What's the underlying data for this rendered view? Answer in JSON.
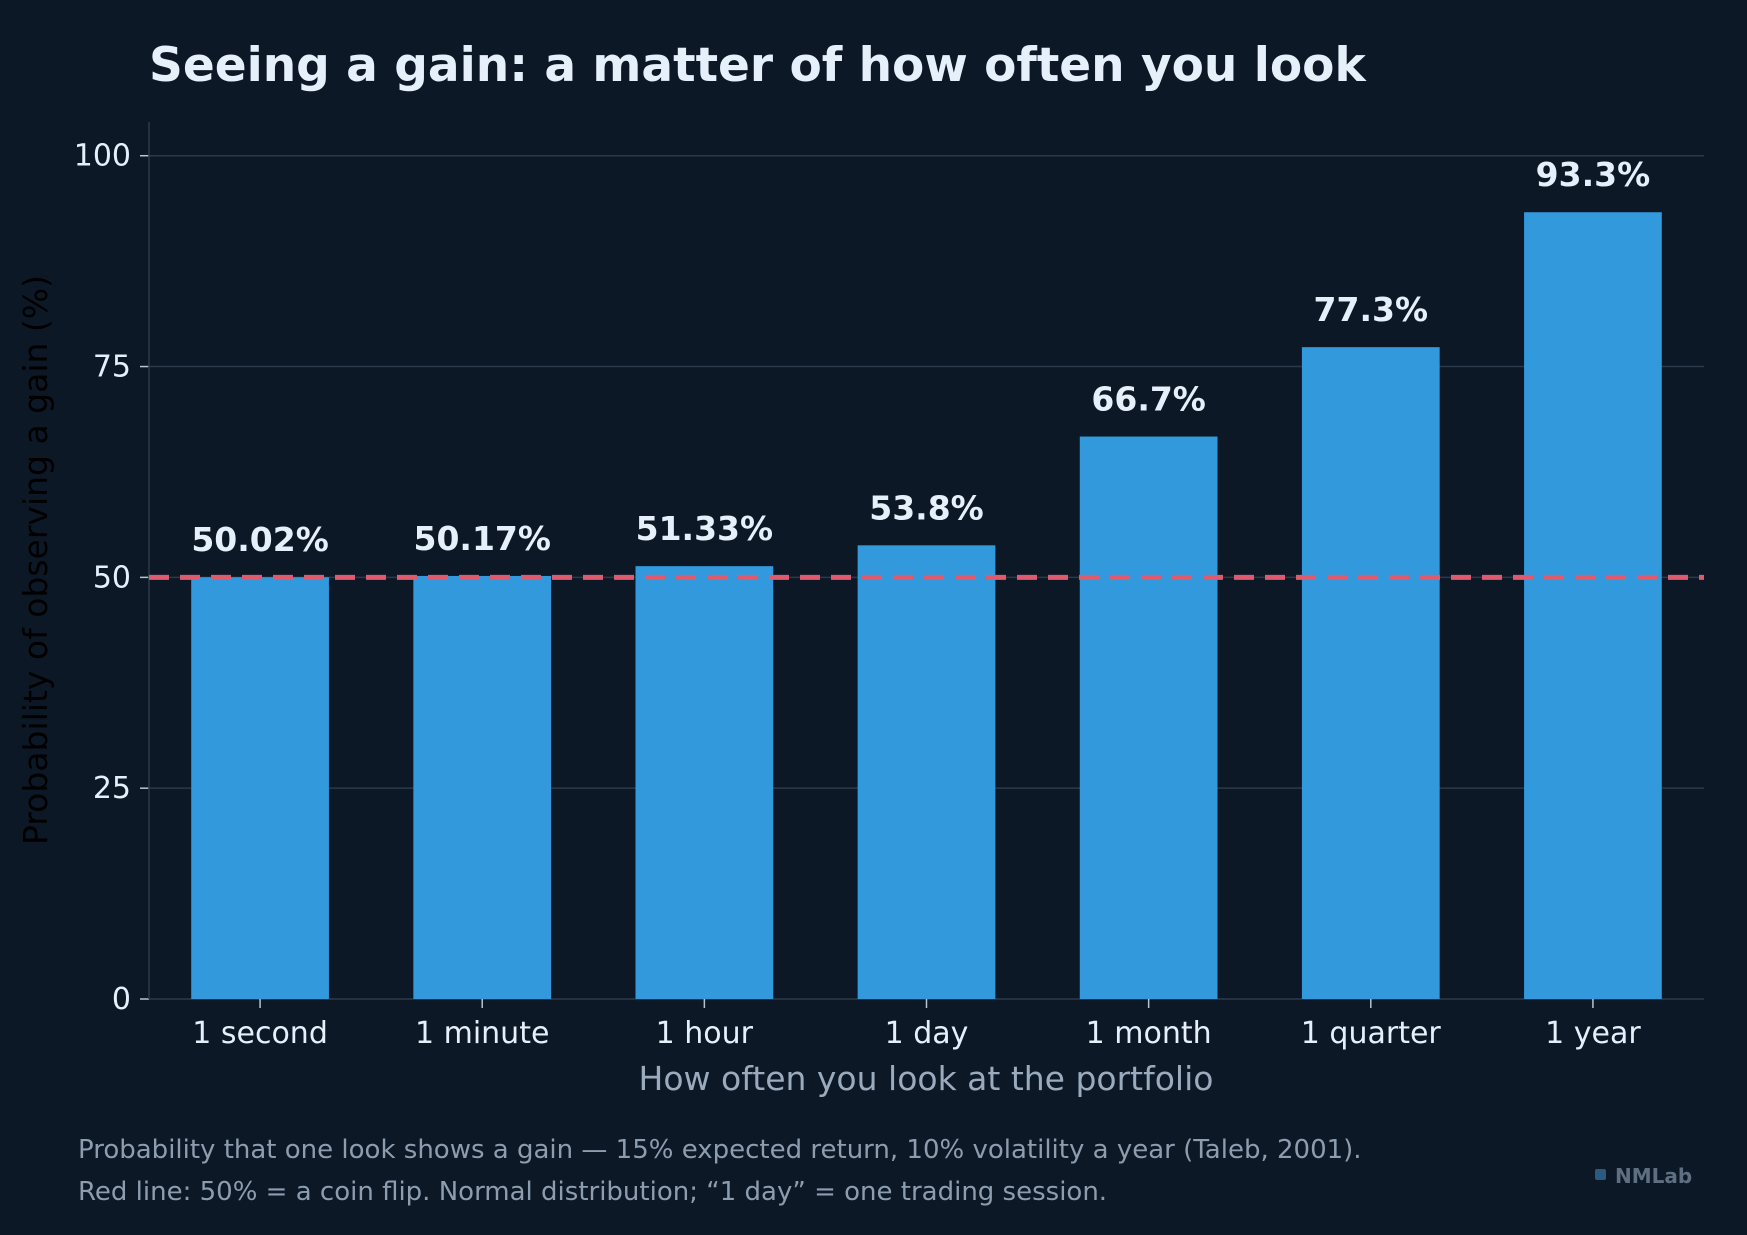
{
  "chart_data": {
    "type": "bar",
    "title": "Seeing a gain: a matter of how often you look",
    "xlabel": "How often you look at the portfolio",
    "ylabel": "Probability of observing a gain (%)",
    "categories": [
      "1 second",
      "1 minute",
      "1 hour",
      "1 day",
      "1 month",
      "1 quarter",
      "1 year"
    ],
    "values": [
      50.02,
      50.17,
      51.33,
      53.8,
      66.7,
      77.3,
      93.3
    ],
    "value_labels": [
      "50.02%",
      "50.17%",
      "51.33%",
      "53.8%",
      "66.7%",
      "77.3%",
      "93.3%"
    ],
    "ylim": [
      0,
      104
    ],
    "yticks": [
      0,
      25,
      50,
      75,
      100
    ],
    "reference_line": {
      "value": 50,
      "style": "dashed",
      "color": "#e05a6e"
    },
    "grid": true,
    "legend": "none"
  },
  "caption": {
    "line1": "Probability that one look shows a gain — 15% expected return, 10% volatility a year (Taleb, 2001).",
    "line2": "Red line: 50% = a coin flip. Normal distribution; “1 day” = one trading session."
  },
  "brand": "NMLab",
  "colors": {
    "background": "#0d1826",
    "bar": "#3399dd",
    "reference_line": "#e05a6e",
    "title": "#e6f0fb",
    "tick_text": "#e6f0fb",
    "xlabel": "#9aabbe",
    "ylabel": "#000000",
    "caption": "#8d9db0",
    "grid": "#2a3a4d",
    "brand": "#5f6f82",
    "brand_mark": "#2a5a80"
  }
}
